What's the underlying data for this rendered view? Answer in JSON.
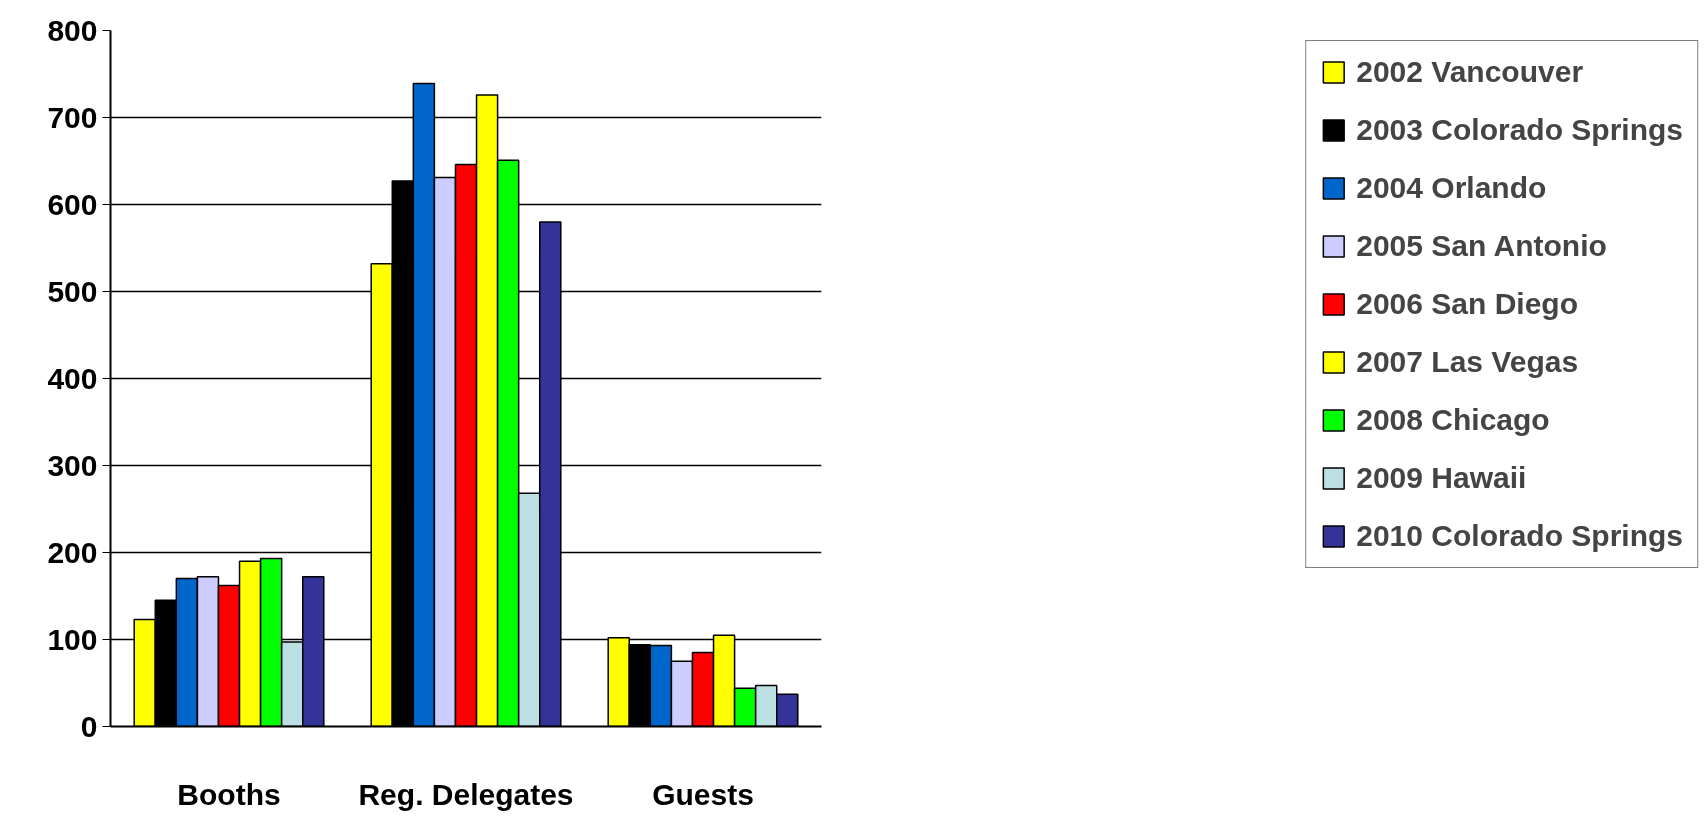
{
  "chart_data": {
    "type": "bar",
    "categories": [
      "Booths",
      "Reg. Delegates",
      "Guests"
    ],
    "series": [
      {
        "name": "2002 Vancouver",
        "color": "#ffff00",
        "values": [
          123,
          532,
          102
        ]
      },
      {
        "name": "2003 Colorado Springs",
        "color": "#000000",
        "values": [
          145,
          627,
          94
        ]
      },
      {
        "name": "2004 Orlando",
        "color": "#0066cc",
        "values": [
          170,
          739,
          93
        ]
      },
      {
        "name": "2005 San Antonio",
        "color": "#ccccff",
        "values": [
          172,
          631,
          75
        ]
      },
      {
        "name": "2006 San Diego",
        "color": "#ff0000",
        "values": [
          162,
          646,
          85
        ]
      },
      {
        "name": "2007 Las Vegas",
        "color": "#ffff00",
        "values": [
          190,
          726,
          105
        ]
      },
      {
        "name": "2008 Chicago",
        "color": "#00ff00",
        "values": [
          193,
          651,
          44
        ]
      },
      {
        "name": "2009 Hawaii",
        "color": "#bbdfe2",
        "values": [
          97,
          268,
          47
        ]
      },
      {
        "name": "2010 Colorado Springs",
        "color": "#333399",
        "values": [
          172,
          580,
          37
        ]
      }
    ],
    "ylim": [
      0,
      800
    ],
    "yticks": [
      0,
      100,
      200,
      300,
      400,
      500,
      600,
      700,
      800
    ],
    "grid": "y",
    "legend": "right"
  }
}
